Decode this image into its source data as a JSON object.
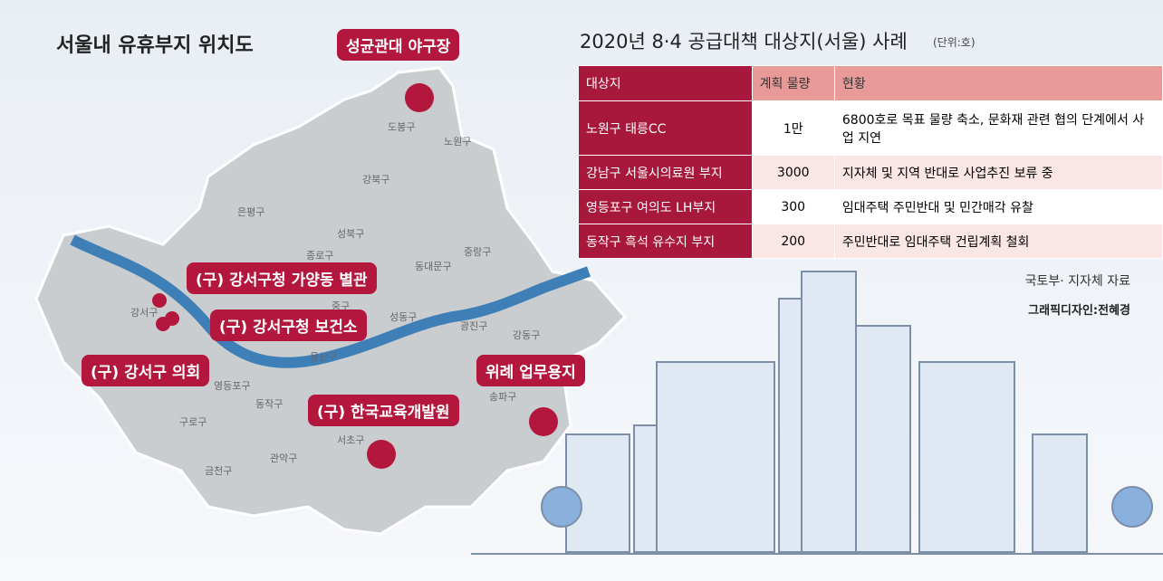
{
  "map": {
    "title": "서울내 유휴부지 위치도",
    "districts": [
      "도봉구",
      "노원구",
      "강북구",
      "은평구",
      "성북구",
      "종로구",
      "동대문구",
      "중랑구",
      "강서구",
      "중구",
      "성동구",
      "광진구",
      "강동구",
      "용산구",
      "영등포구",
      "동작구",
      "구로구",
      "서초구",
      "송파구",
      "관악구",
      "금천구"
    ],
    "callouts": [
      "성균관대 야구장",
      "(구) 강서구청 가양동 별관",
      "(구) 강서구청 보건소",
      "(구) 강서구 의회",
      "(구) 한국교육개발원",
      "위례 업무용지"
    ]
  },
  "table": {
    "title": "2020년 8·4 공급대책 대상지(서울) 사례",
    "unit": "(단위:호)",
    "headers": [
      "대상지",
      "계획 물량",
      "현황"
    ],
    "rows": [
      [
        "노원구 태릉CC",
        "1만",
        "6800호로 목표 물량 축소, 문화재 관련 협의 단계에서 사업 지연"
      ],
      [
        "강남구 서울시의료원 부지",
        "3000",
        "지자체 및 지역 반대로 사업추진 보류 중"
      ],
      [
        "영등포구 여의도 LH부지",
        "300",
        "임대주택 주민반대 및 민간매각 유찰"
      ],
      [
        "동작구 흑석 유수지 부지",
        "200",
        "주민반대로 임대주택 건립계획 철회"
      ]
    ]
  },
  "source": "국토부· 지자체 자료",
  "credit": "그래픽디자인:전혜경"
}
